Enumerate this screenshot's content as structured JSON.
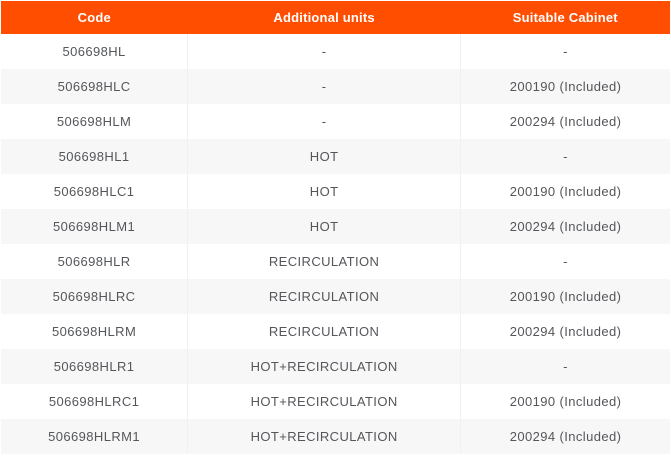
{
  "table": {
    "headers": [
      "Code",
      "Additional units",
      "Suitable Cabinet"
    ],
    "rows": [
      [
        "506698HL",
        "-",
        "-"
      ],
      [
        "506698HLC",
        "-",
        "200190 (Included)"
      ],
      [
        "506698HLM",
        "-",
        "200294 (Included)"
      ],
      [
        "506698HL1",
        "HOT",
        "-"
      ],
      [
        "506698HLC1",
        "HOT",
        "200190 (Included)"
      ],
      [
        "506698HLM1",
        "HOT",
        "200294 (Included)"
      ],
      [
        "506698HLR",
        "RECIRCULATION",
        "-"
      ],
      [
        "506698HLRC",
        "RECIRCULATION",
        "200190 (Included)"
      ],
      [
        "506698HLRM",
        "RECIRCULATION",
        "200294 (Included)"
      ],
      [
        "506698HLR1",
        "HOT+RECIRCULATION",
        "-"
      ],
      [
        "506698HLRC1",
        "HOT+RECIRCULATION",
        "200190 (Included)"
      ],
      [
        "506698HLRM1",
        "HOT+RECIRCULATION",
        "200294 (Included)"
      ]
    ],
    "colors": {
      "header_bg": "#FF4E00",
      "header_text": "#FFFFFF",
      "row_alt_bg": "#F7F7F7",
      "cell_text": "#54565A",
      "divider": "#F1F1F1"
    }
  }
}
